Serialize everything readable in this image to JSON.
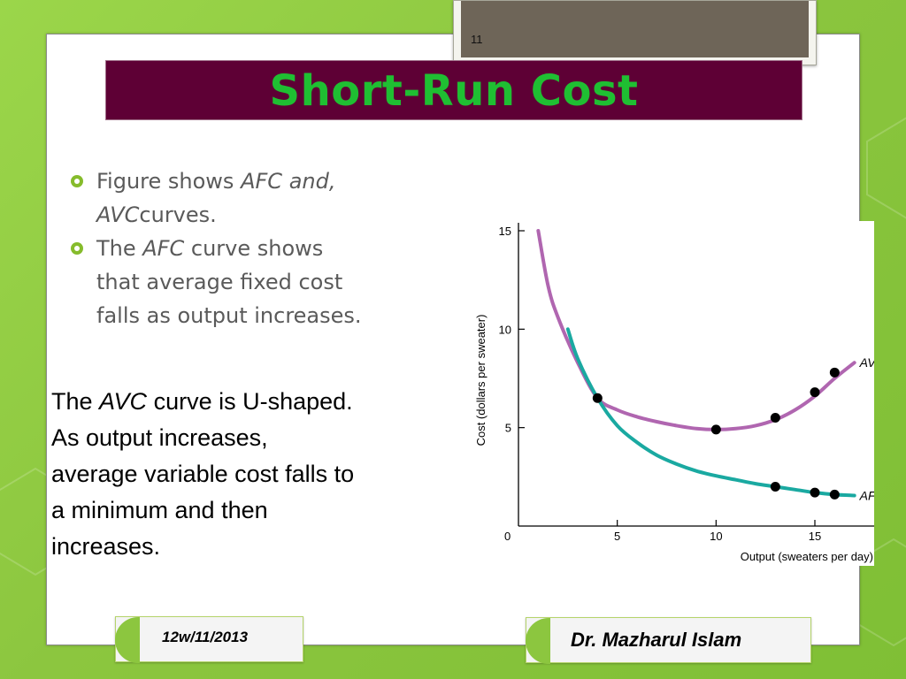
{
  "page_number": "11",
  "title": "Short-Run Cost",
  "bullets": [
    {
      "prefix": "Figure shows ",
      "italic": "AFC and,",
      "line2_italic": "AVC",
      "line2_rest": "curves."
    },
    {
      "prefix": "The ",
      "italic": "AFC",
      "rest": " curve shows",
      "line2": "that average fixed cost",
      "line3": "falls as output increases."
    }
  ],
  "avc_paragraph": {
    "prefix": "The ",
    "italic": "AVC",
    "line1_rest": " curve is U-shaped.",
    "line2": "As output increases,",
    "line3": "average variable cost falls to",
    "line4": "a minimum and then",
    "line5": "increases."
  },
  "footer": {
    "date": "12w/11/2013",
    "author": "Dr. Mazharul Islam"
  },
  "colors": {
    "title_bar": "#5e0035",
    "title_text": "#1fbf32",
    "background": "#8cc63f",
    "avc_curve": "#b066b0",
    "afc_curve": "#1aa9a1"
  },
  "chart_data": {
    "type": "line",
    "xlabel": "Output (sweaters per day)",
    "ylabel": "Cost (dollars per sweater)",
    "xlim": [
      0,
      18
    ],
    "ylim": [
      0,
      15
    ],
    "x_ticks": [
      "0",
      "5",
      "10",
      "15"
    ],
    "y_ticks": [
      "5",
      "10",
      "15"
    ],
    "series": [
      {
        "name": "AVC",
        "curve": [
          [
            1,
            15
          ],
          [
            1.5,
            12.2
          ],
          [
            2,
            10.6
          ],
          [
            3,
            8.3
          ],
          [
            4,
            6.5
          ],
          [
            5,
            5.9
          ],
          [
            6,
            5.55
          ],
          [
            7,
            5.3
          ],
          [
            8,
            5.1
          ],
          [
            9,
            4.95
          ],
          [
            10,
            4.9
          ],
          [
            11,
            4.95
          ],
          [
            12,
            5.1
          ],
          [
            13,
            5.4
          ],
          [
            14,
            5.9
          ],
          [
            15,
            6.6
          ],
          [
            16,
            7.5
          ],
          [
            17,
            8.3
          ]
        ],
        "points": [
          [
            4,
            6.5
          ],
          [
            10,
            4.9
          ],
          [
            13,
            5.5
          ],
          [
            15,
            6.8
          ],
          [
            16,
            7.8
          ]
        ]
      },
      {
        "name": "AFC",
        "curve": [
          [
            2.5,
            10
          ],
          [
            3,
            8.5
          ],
          [
            4,
            6.5
          ],
          [
            5,
            5.1
          ],
          [
            6,
            4.25
          ],
          [
            7,
            3.6
          ],
          [
            8,
            3.15
          ],
          [
            9,
            2.8
          ],
          [
            10,
            2.55
          ],
          [
            11,
            2.35
          ],
          [
            12,
            2.15
          ],
          [
            13,
            2.0
          ],
          [
            14,
            1.85
          ],
          [
            15,
            1.7
          ],
          [
            16,
            1.6
          ],
          [
            17,
            1.55
          ]
        ],
        "points": [
          [
            13,
            2.0
          ],
          [
            15,
            1.7
          ],
          [
            16,
            1.6
          ]
        ]
      }
    ]
  }
}
